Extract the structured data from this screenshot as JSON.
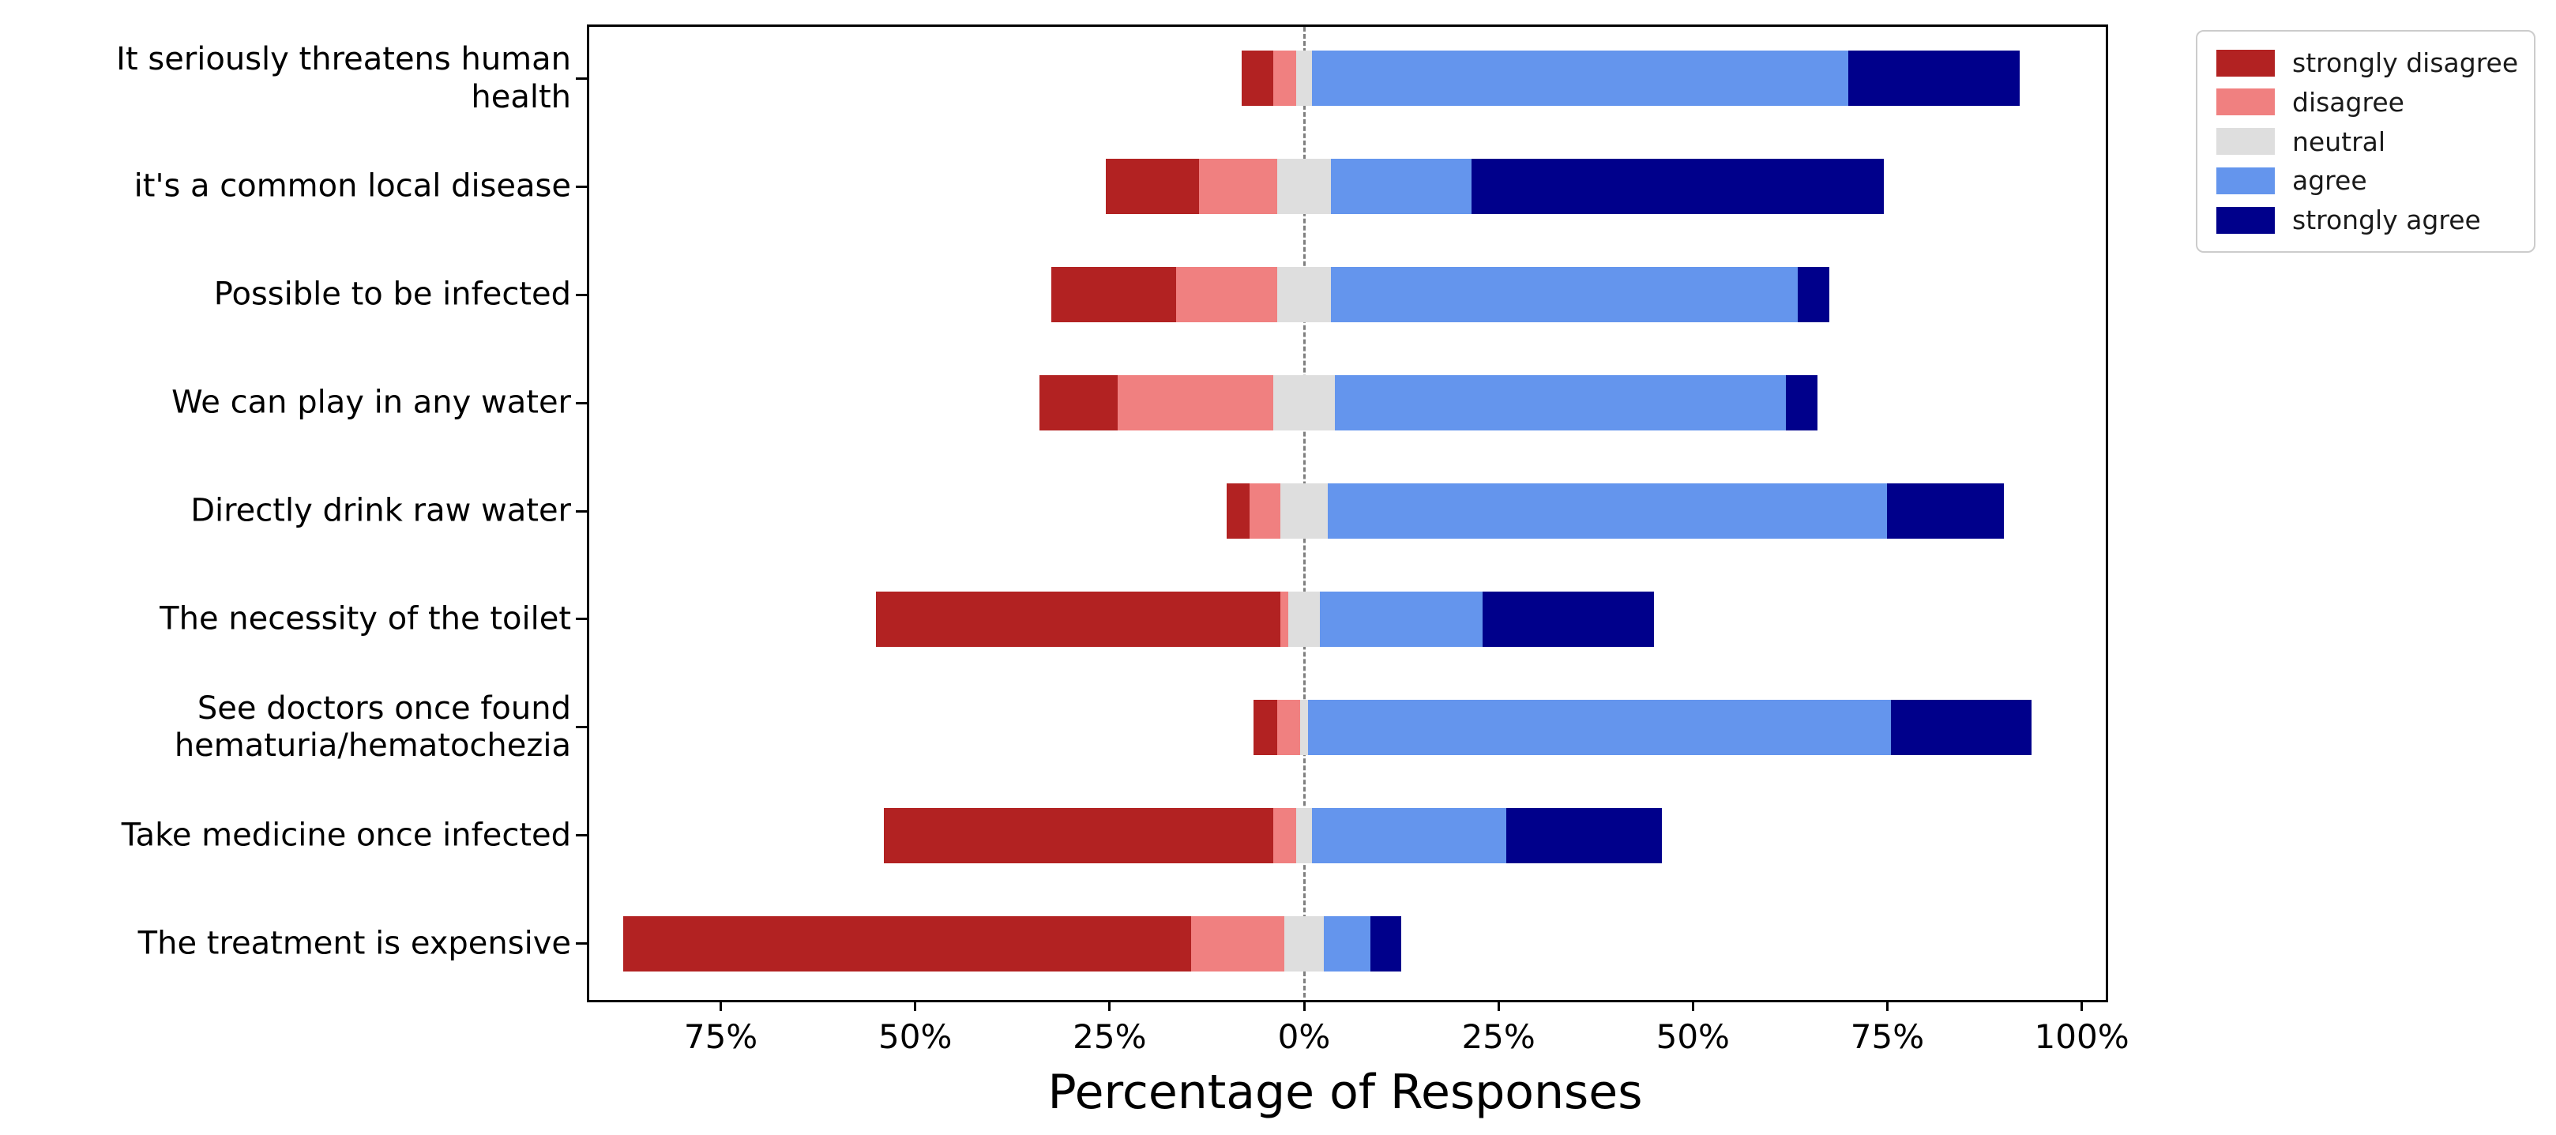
{
  "chart_data": {
    "type": "bar",
    "orientation": "horizontal",
    "variant": "diverging-stacked-likert",
    "title": "",
    "xlabel": "Percentage of Responses",
    "ylabel": "",
    "grid": false,
    "zero_line": {
      "value": 0,
      "style": "dashed",
      "color": "#7f7f7f"
    },
    "xlim": [
      -92.2,
      102.8
    ],
    "x_ticks": {
      "values": [
        -75,
        -50,
        -25,
        0,
        25,
        50,
        75,
        100
      ],
      "labels": [
        "75%",
        "50%",
        "25%",
        "0%",
        "25%",
        "50%",
        "75%",
        "100%"
      ]
    },
    "neutral_split_on_zero": true,
    "categories": [
      "It seriously threatens human\nhealth",
      "it's a common local disease",
      "Possible to be infected",
      "We can play in any water",
      "Directly drink raw water",
      "The necessity of the toilet",
      "See doctors once found\nhematuria/hematochezia",
      "Take medicine once infected",
      "The treatment is expensive"
    ],
    "series": [
      {
        "name": "strongly disagree",
        "color": "#b22222",
        "values": [
          4,
          12,
          16,
          10,
          3,
          52,
          3,
          50,
          73
        ]
      },
      {
        "name": "disagree",
        "color": "#f08080",
        "values": [
          3,
          10,
          13,
          20,
          4,
          1,
          3,
          3,
          12
        ]
      },
      {
        "name": "neutral",
        "color": "#dedede",
        "values": [
          2,
          7,
          7,
          8,
          6,
          4,
          1,
          2,
          5
        ]
      },
      {
        "name": "agree",
        "color": "#6495ed",
        "values": [
          69,
          18,
          60,
          58,
          72,
          21,
          75,
          25,
          6
        ]
      },
      {
        "name": "strongly agree",
        "color": "#00008b",
        "values": [
          22,
          53,
          4,
          4,
          15,
          22,
          18,
          20,
          4
        ]
      }
    ],
    "legend": {
      "position": "outside-upper-right",
      "entries": [
        "strongly disagree",
        "disagree",
        "neutral",
        "agree",
        "strongly agree"
      ]
    }
  }
}
